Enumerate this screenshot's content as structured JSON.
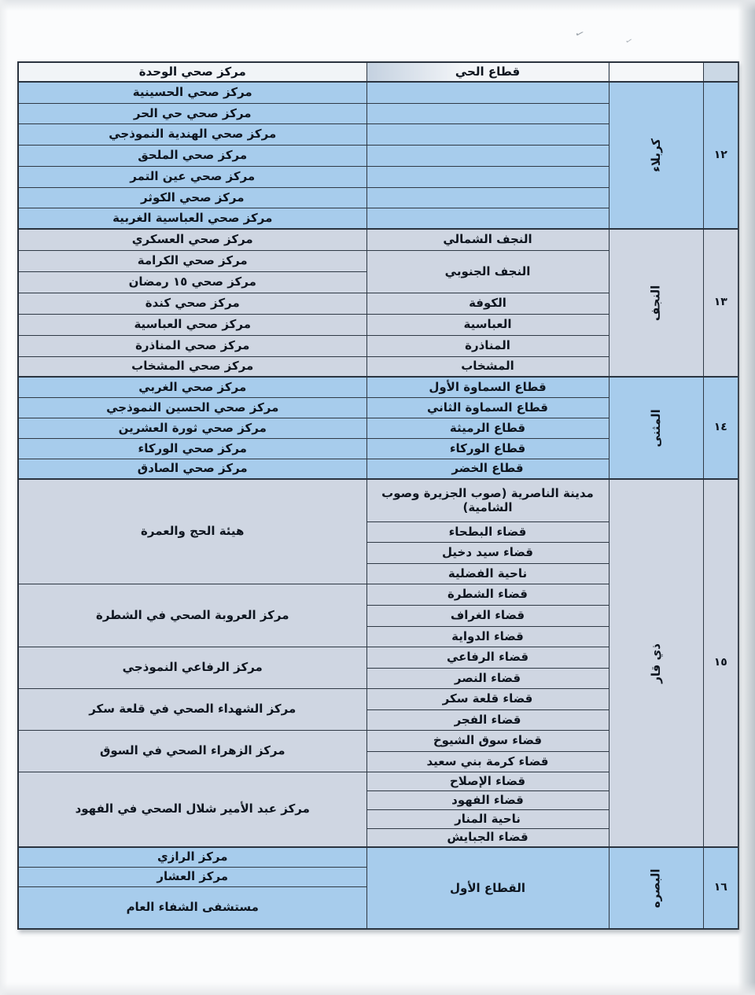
{
  "artifacts": {
    "pen_mark_1": "✓",
    "pen_mark_2": "✓"
  },
  "colors": {
    "section_blue": "#a7ccec",
    "section_gray": "#cfd6e2",
    "header_bg": "#f1f4f7",
    "number_header_bg": "#cbd8e5",
    "border": "#2a333f",
    "text": "#0e151f"
  },
  "table": {
    "header": {
      "health_center": "مركز صحي الوحدة",
      "district": "قطاع الحي",
      "governorate": "",
      "number": ""
    },
    "sections": [
      {
        "id": "karbala",
        "number": "١٢",
        "governorate": "كربلاء",
        "tone": "blue",
        "rows": 7,
        "centers": [
          {
            "text": "مركز صحي الحسينية",
            "span": 1
          },
          {
            "text": "مركز صحي حي الحر",
            "span": 1
          },
          {
            "text": "مركز صحي الهندية النموذجي",
            "span": 1
          },
          {
            "text": "مركز صحي الملحق",
            "span": 1
          },
          {
            "text": "مركز صحي عين التمر",
            "span": 1
          },
          {
            "text": "مركز صحي الكوثر",
            "span": 1
          },
          {
            "text": "مركز صحي العباسية الغربية",
            "span": 1
          }
        ],
        "districts": [
          {
            "text": "",
            "span": 1
          },
          {
            "text": "",
            "span": 1
          },
          {
            "text": "",
            "span": 1
          },
          {
            "text": "",
            "span": 1
          },
          {
            "text": "",
            "span": 1
          },
          {
            "text": "",
            "span": 1
          },
          {
            "text": "",
            "span": 1
          }
        ]
      },
      {
        "id": "najaf",
        "number": "١٣",
        "governorate": "النجف",
        "tone": "gray",
        "rows": 7,
        "centers": [
          {
            "text": "مركز صحي العسكري",
            "span": 1
          },
          {
            "text": "مركز صحي الكرامة",
            "span": 1
          },
          {
            "text": "مركز صحي ١٥ رمضان",
            "span": 1
          },
          {
            "text": "مركز صحي كندة",
            "span": 1
          },
          {
            "text": "مركز صحي العباسية",
            "span": 1
          },
          {
            "text": "مركز صحي المناذرة",
            "span": 1
          },
          {
            "text": "مركز صحي المشخاب",
            "span": 1
          }
        ],
        "districts": [
          {
            "text": "النجف الشمالي",
            "span": 1
          },
          {
            "text": "النجف الجنوبي",
            "span": 2
          },
          {
            "text": "الكوفة",
            "span": 1
          },
          {
            "text": "العباسية",
            "span": 1
          },
          {
            "text": "المناذرة",
            "span": 1
          },
          {
            "text": "المشخاب",
            "span": 1
          }
        ]
      },
      {
        "id": "muthanna",
        "number": "١٤",
        "governorate": "المثنى",
        "tone": "blue",
        "rows": 5,
        "centers": [
          {
            "text": "مركز صحي الغربي",
            "span": 1
          },
          {
            "text": "مركز صحي الحسين النموذجي",
            "span": 1
          },
          {
            "text": "مركز صحي ثورة العشرين",
            "span": 1
          },
          {
            "text": "مركز صحي الوركاء",
            "span": 1
          },
          {
            "text": "مركز صحي الصادق",
            "span": 1
          }
        ],
        "districts": [
          {
            "text": "قطاع السماوة الأول",
            "span": 1
          },
          {
            "text": "قطاع السماوة الثاني",
            "span": 1
          },
          {
            "text": "قطاع الرميثة",
            "span": 1
          },
          {
            "text": "قطاع الوركاء",
            "span": 1
          },
          {
            "text": "قطاع الخضر",
            "span": 1
          }
        ]
      },
      {
        "id": "dhiqar",
        "number": "١٥",
        "governorate": "ذي قار",
        "tone": "gray",
        "rows": 17,
        "centers": [
          {
            "text": "هيئة الحج والعمرة",
            "span": 4
          },
          {
            "text": "مركز العروبة الصحي في الشطرة",
            "span": 3
          },
          {
            "text": "مركز الرفاعي النموذجي",
            "span": 2
          },
          {
            "text": "مركز الشهداء الصحي في قلعة سكر",
            "span": 2
          },
          {
            "text": "مركز الزهراء الصحي في السوق",
            "span": 2
          },
          {
            "text": "مركز عبد الأمير شلال الصحي في الفهود",
            "span": 4
          }
        ],
        "districts": [
          {
            "text": "مدينة الناصرية (صوب الجزيرة وصوب الشامية)",
            "span": 1
          },
          {
            "text": "قضاء البطحاء",
            "span": 1
          },
          {
            "text": "قضاء سيد دخيل",
            "span": 1
          },
          {
            "text": "ناحية الفضلية",
            "span": 1
          },
          {
            "text": "قضاء الشطرة",
            "span": 1
          },
          {
            "text": "قضاء الغراف",
            "span": 1
          },
          {
            "text": "قضاء الدواية",
            "span": 1
          },
          {
            "text": "قضاء الرفاعي",
            "span": 1
          },
          {
            "text": "قضاء النصر",
            "span": 1
          },
          {
            "text": "قضاء قلعة سكر",
            "span": 1
          },
          {
            "text": "قضاء الفجر",
            "span": 1
          },
          {
            "text": "قضاء سوق الشيوخ",
            "span": 1
          },
          {
            "text": "قضاء كرمة بني سعيد",
            "span": 1
          },
          {
            "text": "قضاء الإصلاح",
            "span": 1
          },
          {
            "text": "قضاء الفهود",
            "span": 1
          },
          {
            "text": "ناحية المنار",
            "span": 1
          },
          {
            "text": "قضاء الجبايش",
            "span": 1
          }
        ]
      },
      {
        "id": "basra",
        "number": "١٦",
        "governorate": "البصره",
        "tone": "blue",
        "rows": 3,
        "centers": [
          {
            "text": "مركز الرازي",
            "span": 1
          },
          {
            "text": "مركز العشار",
            "span": 1
          },
          {
            "text": "مستشفى الشفاء العام",
            "span": 1
          }
        ],
        "districts": [
          {
            "text": "القطاع الأول",
            "span": 3
          }
        ]
      }
    ]
  }
}
